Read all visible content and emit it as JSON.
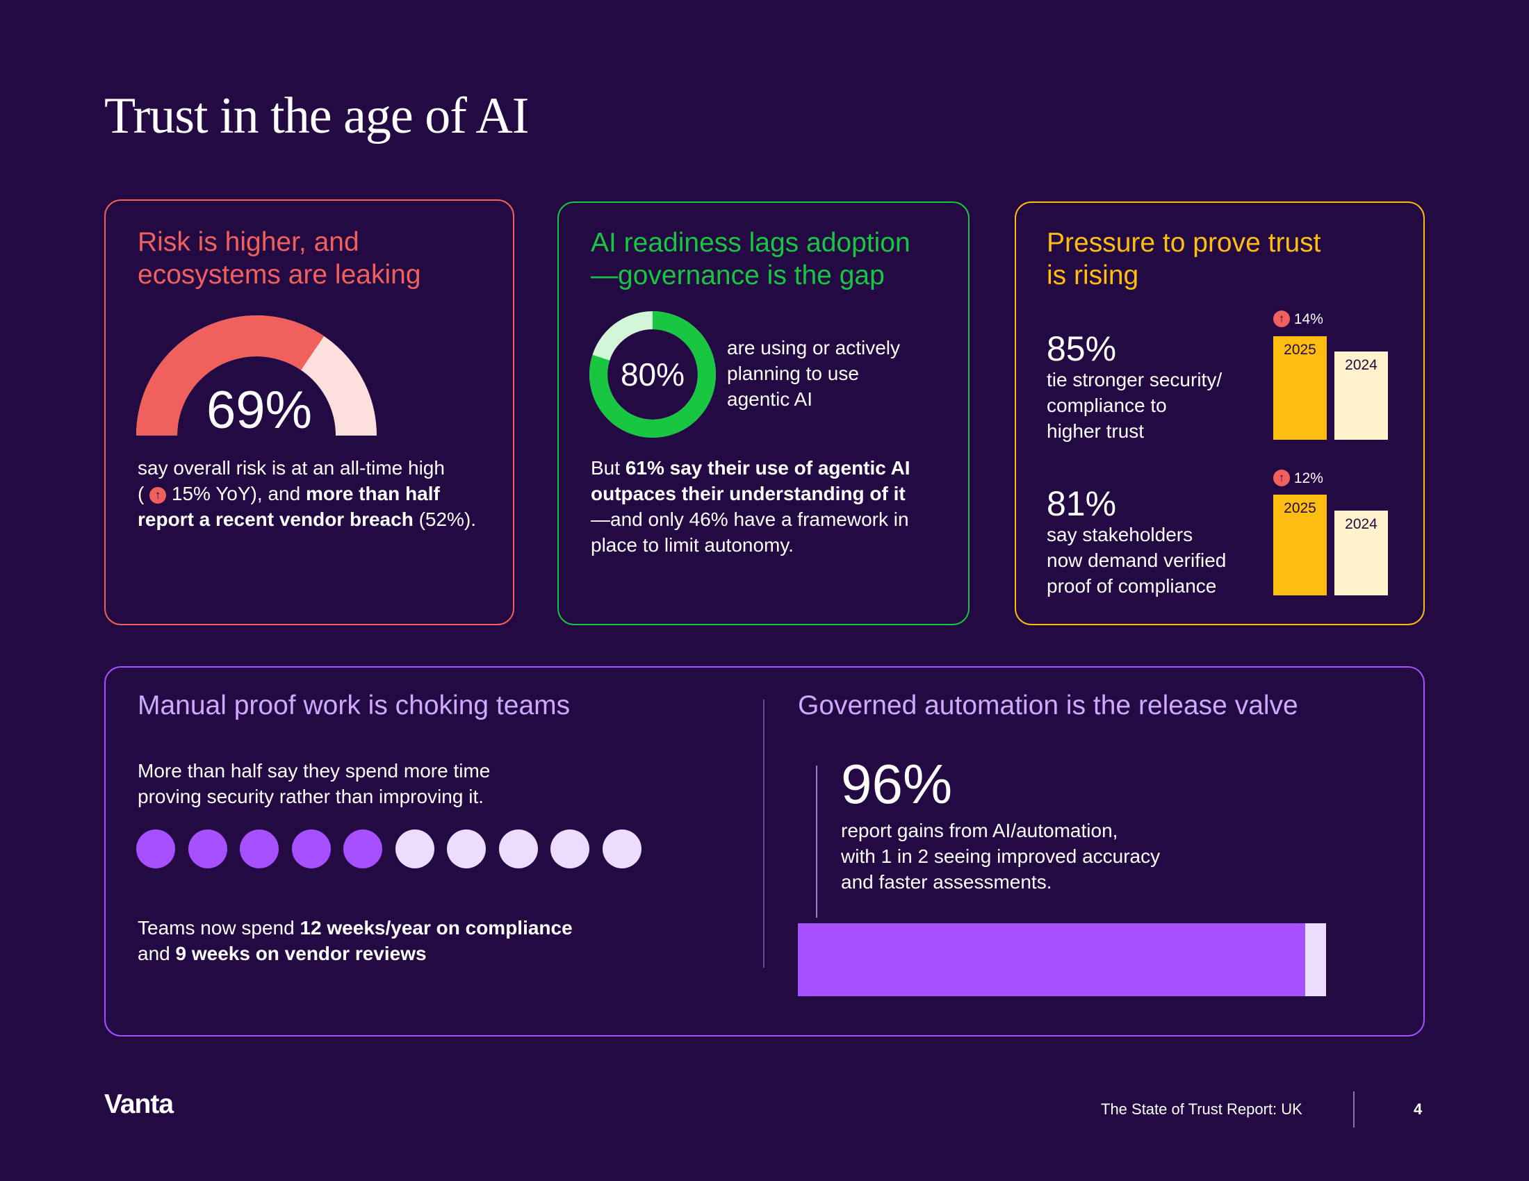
{
  "page": {
    "title": "Trust in the age of AI"
  },
  "colors": {
    "background": "#230a42",
    "risk": "#f0605c",
    "risk_light": "#fde0dd",
    "ai": "#18c641",
    "ai_light": "#d2f4d7",
    "pressure": "#ffbd12",
    "pressure_light": "#fff2cc",
    "purple": "#a650ff",
    "purple_light": "#ecdcfd",
    "purple_text": "#cfa9ff"
  },
  "risk_card": {
    "heading_line1": "Risk is higher, and",
    "heading_line2": "ecosystems are leaking",
    "gauge_value": "69%",
    "gauge_fraction": 0.69,
    "line1": "say overall risk is at an all-time high",
    "line2_open": "(",
    "arrow": "↑",
    "line2_yoy": " 15% YoY), and ",
    "line2_bold": "more than half",
    "line3_bold": "report a recent vendor breach",
    "line3_tail": " (52%)."
  },
  "ai_card": {
    "heading_line1": "AI readiness lags adoption",
    "heading_line2": "—governance is the gap",
    "donut_value": "80%",
    "donut_fraction": 0.8,
    "donut_label_line1": "are using or actively",
    "donut_label_line2": "planning to use",
    "donut_label_line3": "agentic AI",
    "p_line1_a": "But ",
    "p_line1_b": "61% say their use of agentic AI",
    "p_line2": "outpaces their understanding of it",
    "p_line3": "—and only 46% have a framework in",
    "p_line4": "place to limit autonomy."
  },
  "pressure_card": {
    "heading_line1": "Pressure to prove trust",
    "heading_line2": "is rising",
    "stat1": {
      "value": "85%",
      "line1": "tie stronger security/",
      "line2": "compliance to",
      "line3": "higher trust",
      "arrow": "↑",
      "change": "14%",
      "bar_2025": "2025",
      "bar_2024": "2024"
    },
    "stat2": {
      "value": "81%",
      "line1": "say stakeholders",
      "line2": "now demand verified",
      "line3": "proof of compliance",
      "arrow": "↑",
      "change": "12%",
      "bar_2025": "2025",
      "bar_2024": "2024"
    }
  },
  "manual_section": {
    "heading": "Manual proof work is choking teams",
    "line1": "More than half say they spend more time",
    "line2": "proving security rather than improving it.",
    "dots_filled": 5,
    "dots_total": 10,
    "f_line1_a": "Teams now spend ",
    "f_line1_b": "12 weeks/year on compliance",
    "f_line2_a": "and ",
    "f_line2_b": "9 weeks on vendor reviews"
  },
  "automation_section": {
    "heading": "Governed automation is the release valve",
    "value": "96%",
    "line1": "report gains from AI/automation,",
    "line2": "with 1 in 2 seeing improved accuracy",
    "line3": "and faster assessments.",
    "bar_fraction": 0.96
  },
  "footer": {
    "logo": "Vanta",
    "report_name": "The State of Trust Report: UK",
    "page_number": "4"
  }
}
